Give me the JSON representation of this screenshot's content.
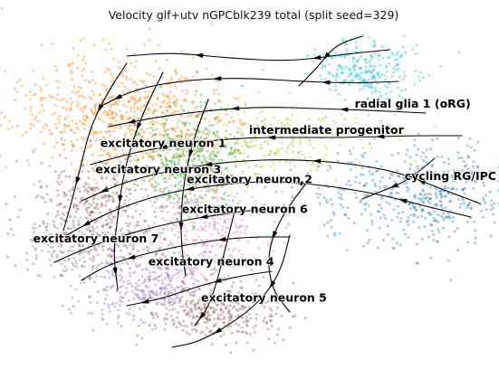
{
  "chart_data": {
    "type": "scatter",
    "title": "Velocity glf+utv nGPCblk239 total (split seed=329)",
    "xlabel": "",
    "ylabel": "",
    "grid": false,
    "legend": "on data",
    "overlay": "velocity streamlines",
    "clusters": [
      {
        "name": "radial glia 1 (oRG)",
        "color": "#17becf",
        "x": 7.2,
        "y": 7.6
      },
      {
        "name": "intermediate progenitor",
        "color": "#bcbd22",
        "x": 5.0,
        "y": 6.8
      },
      {
        "name": "excitatory neuron 1",
        "color": "#ff7f0e",
        "x": 1.9,
        "y": 6.4
      },
      {
        "name": "excitatory neuron 3",
        "color": "#8c564b",
        "x": 1.8,
        "y": 5.6
      },
      {
        "name": "excitatory neuron 2",
        "color": "#2ca02c",
        "x": 3.7,
        "y": 5.3
      },
      {
        "name": "cycling RG/IPC",
        "color": "#1f77b4",
        "x": 8.3,
        "y": 5.4
      },
      {
        "name": "excitatory neuron 6",
        "color": "#e377c2",
        "x": 3.6,
        "y": 4.4
      },
      {
        "name": "excitatory neuron 7",
        "color": "#7f7f7f",
        "x": 0.5,
        "y": 3.5
      },
      {
        "name": "excitatory neuron 4",
        "color": "#9467bd",
        "x": 2.9,
        "y": 2.8
      },
      {
        "name": "excitatory neuron 5",
        "color": "#8c564b",
        "x": 4.0,
        "y": 1.7
      }
    ]
  }
}
